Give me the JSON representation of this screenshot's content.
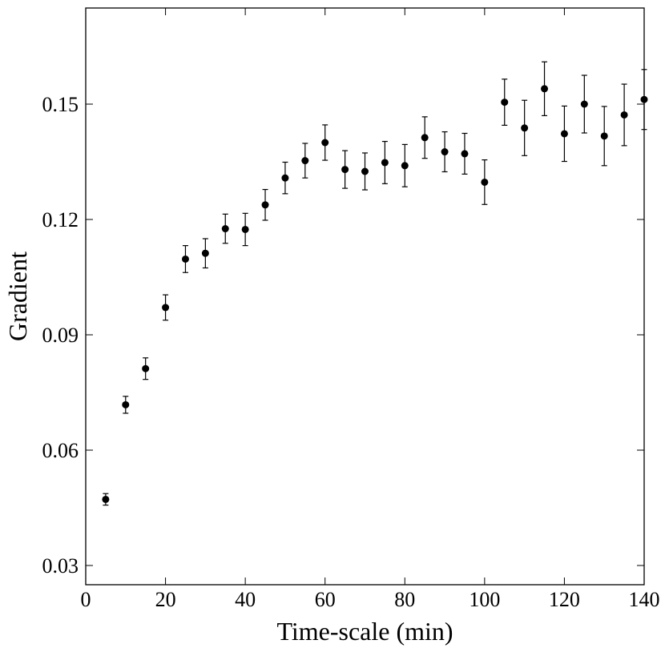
{
  "chart_data": {
    "type": "scatter",
    "title": "",
    "xlabel": "Time-scale (min)",
    "ylabel": "Gradient",
    "xlim": [
      0,
      140
    ],
    "ylim": [
      0.025,
      0.175
    ],
    "xticks": [
      0,
      20,
      40,
      60,
      80,
      100,
      120,
      140
    ],
    "yticks": [
      0.03,
      0.06,
      0.09,
      0.12,
      0.15
    ],
    "xtick_labels": [
      "0",
      "20",
      "40",
      "60",
      "80",
      "100",
      "120",
      "140"
    ],
    "ytick_labels": [
      "0.03",
      "0.06",
      "0.09",
      "0.12",
      "0.15"
    ],
    "grid": false,
    "marker_color": "#000000",
    "points": [
      {
        "x": 5,
        "y": 0.0472,
        "err": 0.0015
      },
      {
        "x": 10,
        "y": 0.0718,
        "err": 0.0022
      },
      {
        "x": 15,
        "y": 0.0812,
        "err": 0.0028
      },
      {
        "x": 20,
        "y": 0.0971,
        "err": 0.0033
      },
      {
        "x": 25,
        "y": 0.1097,
        "err": 0.0035
      },
      {
        "x": 30,
        "y": 0.1112,
        "err": 0.0038
      },
      {
        "x": 35,
        "y": 0.1176,
        "err": 0.0038
      },
      {
        "x": 40,
        "y": 0.1174,
        "err": 0.0042
      },
      {
        "x": 45,
        "y": 0.1238,
        "err": 0.004
      },
      {
        "x": 50,
        "y": 0.1308,
        "err": 0.0041
      },
      {
        "x": 55,
        "y": 0.1353,
        "err": 0.0045
      },
      {
        "x": 60,
        "y": 0.14,
        "err": 0.0046
      },
      {
        "x": 65,
        "y": 0.133,
        "err": 0.0049
      },
      {
        "x": 70,
        "y": 0.1325,
        "err": 0.0048
      },
      {
        "x": 75,
        "y": 0.1348,
        "err": 0.0055
      },
      {
        "x": 80,
        "y": 0.134,
        "err": 0.0055
      },
      {
        "x": 85,
        "y": 0.1413,
        "err": 0.0054
      },
      {
        "x": 90,
        "y": 0.1376,
        "err": 0.0052
      },
      {
        "x": 95,
        "y": 0.1371,
        "err": 0.0053
      },
      {
        "x": 100,
        "y": 0.1297,
        "err": 0.0058
      },
      {
        "x": 105,
        "y": 0.1505,
        "err": 0.006
      },
      {
        "x": 110,
        "y": 0.1438,
        "err": 0.0072
      },
      {
        "x": 115,
        "y": 0.154,
        "err": 0.007
      },
      {
        "x": 120,
        "y": 0.1423,
        "err": 0.0072
      },
      {
        "x": 125,
        "y": 0.15,
        "err": 0.0075
      },
      {
        "x": 130,
        "y": 0.1417,
        "err": 0.0077
      },
      {
        "x": 135,
        "y": 0.1472,
        "err": 0.008
      },
      {
        "x": 140,
        "y": 0.1512,
        "err": 0.0078
      }
    ]
  }
}
